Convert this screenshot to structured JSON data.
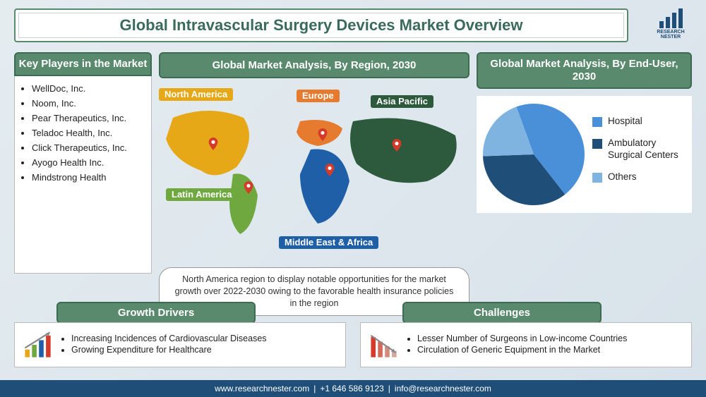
{
  "title": "Global Intravascular Surgery Devices Market Overview",
  "logo": {
    "line1": "RESEARCH",
    "line2": "NESTER"
  },
  "key_players": {
    "heading": "Key Players in the Market",
    "items": [
      "WellDoc, Inc.",
      "Noom, Inc.",
      "Pear Therapeutics, Inc.",
      "Teladoc Health, Inc.",
      "Click Therapeutics, Inc.",
      "Ayogo Health Inc.",
      "Mindstrong Health"
    ]
  },
  "map_panel": {
    "heading": "Global Market Analysis, By Region, 2030",
    "regions": {
      "na": {
        "label": "North America",
        "color": "#e6a817"
      },
      "la": {
        "label": "Latin America",
        "color": "#6fa83e"
      },
      "eu": {
        "label": "Europe",
        "color": "#e67a2e"
      },
      "ap": {
        "label": "Asia Pacific",
        "color": "#2d5a3d"
      },
      "mea": {
        "label": "Middle East & Africa",
        "color": "#1f5fa8"
      }
    },
    "pin_color": "#d43b2a",
    "note": "North America region to display notable opportunities for the market growth over 2022-2030 owing to the favorable health insurance policies in the region"
  },
  "pie_panel": {
    "heading": "Global Market Analysis, By End-User, 2030",
    "type": "pie",
    "background_color": "#ffffff",
    "slices": [
      {
        "label": "Hospital",
        "value": 45,
        "color": "#4a90d9"
      },
      {
        "label": "Ambulatory Surgical Centers",
        "value": 35,
        "color": "#1f4e79"
      },
      {
        "label": "Others",
        "value": 20,
        "color": "#7fb4e0"
      }
    ],
    "start_angle_deg": -20
  },
  "growth_drivers": {
    "heading": "Growth Drivers",
    "items": [
      "Increasing Incidences of Cardiovascular Diseases",
      "Growing Expenditure for Healthcare"
    ]
  },
  "challenges": {
    "heading": "Challenges",
    "items": [
      "Lesser Number of Surgeons in Low-income Countries",
      "Circulation of Generic Equipment in the Market"
    ]
  },
  "footer": {
    "site": "www.researchnester.com",
    "phone": "+1 646 586 9123",
    "email": "info@researchnester.com",
    "sep": " | "
  }
}
